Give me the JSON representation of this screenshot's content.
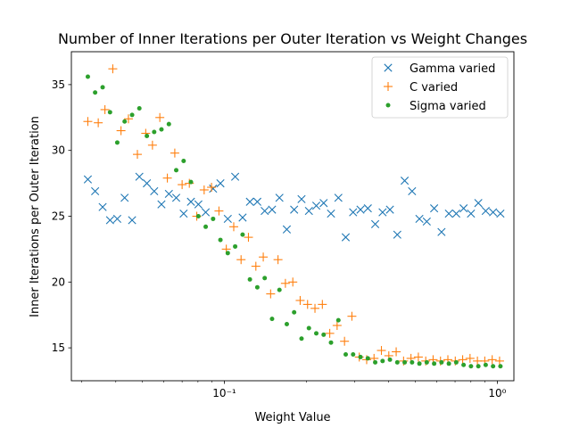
{
  "chart_data": {
    "type": "scatter",
    "title": "Number of Inner Iterations per Outer Iteration vs Weight Changes",
    "xlabel": "Weight Value",
    "ylabel": "Inner Iterations per Outer Iteration",
    "xscale": "log",
    "xlim": [
      0.0275,
      1.15
    ],
    "ylim": [
      12.5,
      37.5
    ],
    "yticks": [
      15,
      20,
      25,
      30,
      35
    ],
    "xticks": [
      {
        "value": 0.1,
        "label": "10⁻¹"
      },
      {
        "value": 1.0,
        "label": "10⁰"
      }
    ],
    "grid": false,
    "legend_position": "top-right",
    "series": [
      {
        "name": "Gamma varied",
        "marker": "x",
        "color": "#1f77b4",
        "x": [
          0.0316,
          0.0336,
          0.0358,
          0.0381,
          0.0405,
          0.0431,
          0.0459,
          0.0488,
          0.052,
          0.0553,
          0.0588,
          0.0626,
          0.0666,
          0.0709,
          0.0754,
          0.0803,
          0.0854,
          0.0909,
          0.0967,
          0.1029,
          0.1095,
          0.1166,
          0.124,
          0.132,
          0.1405,
          0.1495,
          0.1591,
          0.1693,
          0.1801,
          0.1917,
          0.204,
          0.2171,
          0.231,
          0.2458,
          0.2616,
          0.2783,
          0.2962,
          0.3152,
          0.3354,
          0.3569,
          0.3798,
          0.4041,
          0.43,
          0.4576,
          0.487,
          0.5182,
          0.5514,
          0.5868,
          0.6244,
          0.6644,
          0.707,
          0.7523,
          0.8006,
          0.8519,
          0.9065,
          0.9647,
          1.0265
        ],
        "y": [
          27.8,
          26.9,
          25.7,
          24.7,
          24.8,
          26.4,
          24.7,
          28.0,
          27.5,
          26.9,
          25.9,
          26.7,
          26.4,
          25.2,
          26.1,
          25.9,
          25.3,
          27.1,
          27.5,
          24.8,
          28.0,
          24.9,
          26.1,
          26.1,
          25.4,
          25.5,
          26.4,
          24.0,
          25.5,
          26.3,
          25.4,
          25.8,
          26.0,
          25.2,
          26.4,
          23.4,
          25.3,
          25.5,
          25.6,
          24.4,
          25.3,
          25.5,
          23.6,
          27.7,
          26.9,
          24.8,
          24.6,
          25.6,
          23.8,
          25.2,
          25.2,
          25.6,
          25.2,
          26.0,
          25.4,
          25.3,
          25.2
        ]
      },
      {
        "name": "C varied",
        "marker": "+",
        "color": "#ff7f0e",
        "x": [
          0.0316,
          0.0345,
          0.0365,
          0.039,
          0.0418,
          0.0445,
          0.048,
          0.0515,
          0.0545,
          0.058,
          0.0618,
          0.0658,
          0.07,
          0.0744,
          0.0792,
          0.0843,
          0.0897,
          0.0955,
          0.1016,
          0.1082,
          0.1151,
          0.1225,
          0.1304,
          0.1388,
          0.1477,
          0.1572,
          0.1673,
          0.1781,
          0.1895,
          0.2017,
          0.2147,
          0.2285,
          0.2432,
          0.2588,
          0.2755,
          0.2932,
          0.312,
          0.3321,
          0.3534,
          0.3761,
          0.4003,
          0.426,
          0.4534,
          0.4826,
          0.5136,
          0.5466,
          0.5817,
          0.6191,
          0.6589,
          0.7013,
          0.7463,
          0.7943,
          0.8453,
          0.8996,
          0.9575,
          1.019
        ],
        "y": [
          32.2,
          32.1,
          33.1,
          36.2,
          31.5,
          32.4,
          29.7,
          31.3,
          30.4,
          32.5,
          27.9,
          29.8,
          27.4,
          27.5,
          25.0,
          27.0,
          27.2,
          25.4,
          22.5,
          24.2,
          21.7,
          23.4,
          21.2,
          21.9,
          19.1,
          21.7,
          19.9,
          20.0,
          18.6,
          18.3,
          18.0,
          18.3,
          16.1,
          16.7,
          15.5,
          17.4,
          14.3,
          14.1,
          14.2,
          14.8,
          14.4,
          14.7,
          14.0,
          14.2,
          14.3,
          14.0,
          14.1,
          14.0,
          14.1,
          14.0,
          14.1,
          14.2,
          14.0,
          14.0,
          14.1,
          14.0
        ]
      },
      {
        "name": "Sigma varied",
        "marker": "o",
        "color": "#2ca02c",
        "x": [
          0.0316,
          0.0336,
          0.0358,
          0.0381,
          0.0405,
          0.0431,
          0.0459,
          0.0488,
          0.052,
          0.0553,
          0.0588,
          0.0626,
          0.0666,
          0.0709,
          0.0754,
          0.0803,
          0.0854,
          0.0909,
          0.0967,
          0.1029,
          0.1095,
          0.1166,
          0.124,
          0.132,
          0.1405,
          0.1495,
          0.1591,
          0.1693,
          0.1801,
          0.1917,
          0.204,
          0.2171,
          0.231,
          0.2458,
          0.2616,
          0.2783,
          0.2962,
          0.3152,
          0.3354,
          0.3569,
          0.3798,
          0.4041,
          0.43,
          0.4576,
          0.487,
          0.5182,
          0.5514,
          0.5868,
          0.6244,
          0.6644,
          0.707,
          0.7523,
          0.8006,
          0.8519,
          0.9065,
          0.9647,
          1.0265
        ],
        "y": [
          35.6,
          34.4,
          34.8,
          32.9,
          30.6,
          32.2,
          32.7,
          33.2,
          31.1,
          31.4,
          31.6,
          32.0,
          28.5,
          29.2,
          27.6,
          25.0,
          24.2,
          24.8,
          23.2,
          22.2,
          22.7,
          23.6,
          20.2,
          19.6,
          20.3,
          17.2,
          19.4,
          16.8,
          17.7,
          15.7,
          16.5,
          16.1,
          16.0,
          15.4,
          17.1,
          14.5,
          14.5,
          14.3,
          14.2,
          13.9,
          14.0,
          14.1,
          13.9,
          13.9,
          13.9,
          13.8,
          13.9,
          13.8,
          13.9,
          13.8,
          13.9,
          13.7,
          13.6,
          13.6,
          13.7,
          13.6,
          13.6
        ]
      }
    ]
  }
}
